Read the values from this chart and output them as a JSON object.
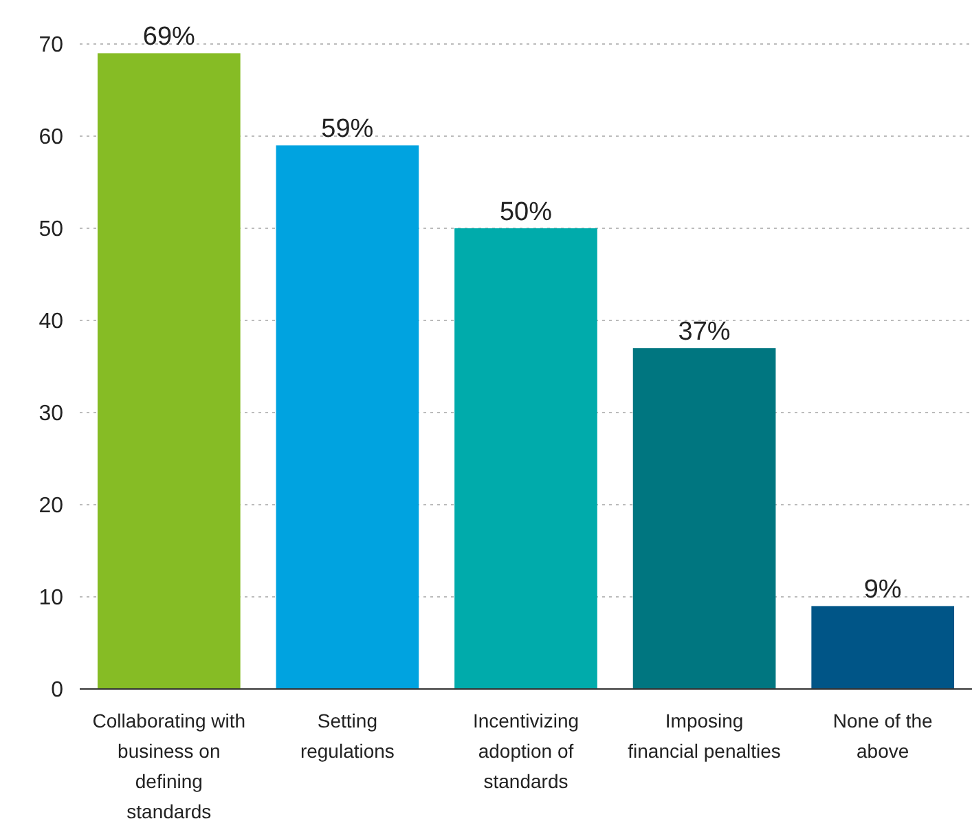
{
  "chart_data": {
    "type": "bar",
    "categories": [
      "Collaborating with business on defining standards",
      "Setting regulations",
      "Incentivizing adoption of standards",
      "Imposing financial penalties",
      "None of the above"
    ],
    "values": [
      69,
      59,
      50,
      37,
      9
    ],
    "colors": [
      "#86bc25",
      "#00a3e0",
      "#00abab",
      "#007680",
      "#005587"
    ],
    "value_labels": [
      "69%",
      "59%",
      "50%",
      "37%",
      "9%"
    ],
    "ylim": [
      0,
      70
    ],
    "yticks": [
      0,
      10,
      20,
      30,
      40,
      50,
      60,
      70
    ],
    "grid": "y"
  }
}
